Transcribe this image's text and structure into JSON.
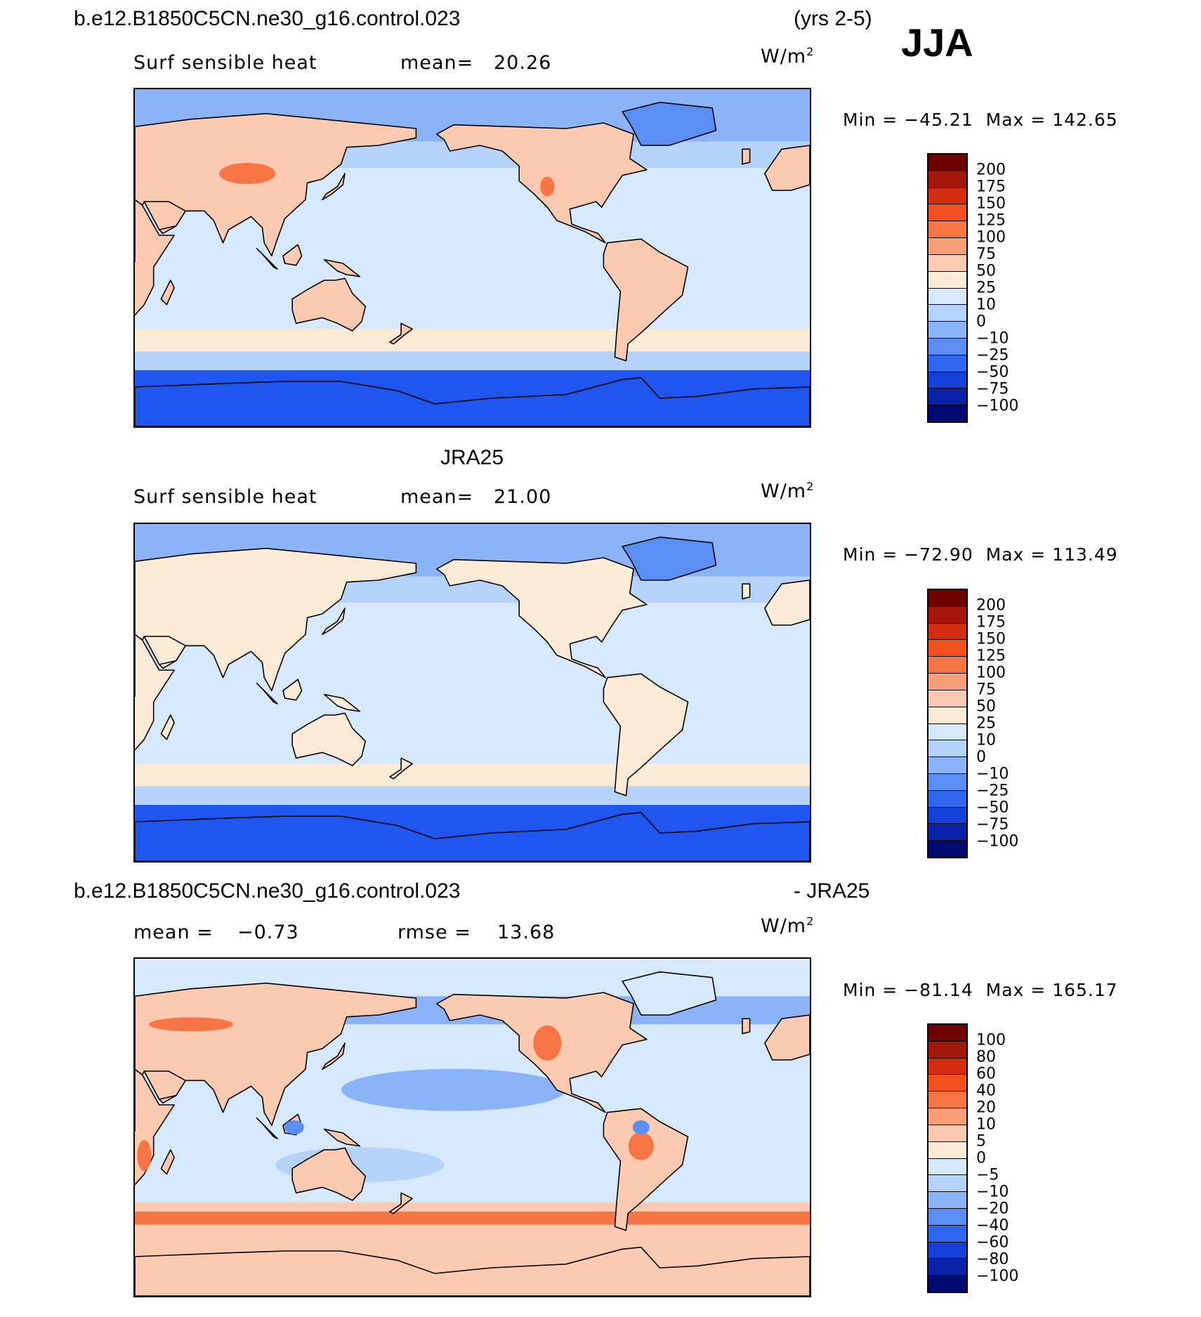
{
  "header": {
    "case_name": "b.e12.B1850C5CN.ne30_g16.control.023",
    "years": "(yrs 2-5)",
    "season": "JJA"
  },
  "panels": [
    {
      "id": "model",
      "field": "Surf  sensible  heat",
      "stat_label": "mean=",
      "stat_value": "20.26",
      "units_base": "W/m",
      "units_exp": "2",
      "min_label": "Min  =",
      "min_value": "−45.21",
      "max_label": "Max  =",
      "max_value": "142.65",
      "levels": [
        "200",
        "175",
        "150",
        "125",
        "100",
        "75",
        "50",
        "25",
        "10",
        "0",
        "−10",
        "−25",
        "−50",
        "−75",
        "−100"
      ]
    },
    {
      "id": "obs",
      "title": "JRA25",
      "field": "Surf  sensible  heat",
      "stat_label": "mean=",
      "stat_value": "21.00",
      "units_base": "W/m",
      "units_exp": "2",
      "min_label": "Min  =",
      "min_value": "−72.90",
      "max_label": "Max  =",
      "max_value": "113.49",
      "levels": [
        "200",
        "175",
        "150",
        "125",
        "100",
        "75",
        "50",
        "25",
        "10",
        "0",
        "−10",
        "−25",
        "−50",
        "−75",
        "−100"
      ]
    },
    {
      "id": "diff",
      "title_left": "b.e12.B1850C5CN.ne30_g16.control.023",
      "title_right": "- JRA25",
      "stat_label": "mean  =",
      "stat_value": "−0.73",
      "rmse_label": "rmse  =",
      "rmse_value": "13.68",
      "units_base": "W/m",
      "units_exp": "2",
      "min_label": "Min  =",
      "min_value": "−81.14",
      "max_label": "Max  =",
      "max_value": "165.17",
      "levels": [
        "100",
        "80",
        "60",
        "40",
        "20",
        "10",
        "5",
        "0",
        "−5",
        "−10",
        "−20",
        "−40",
        "−60",
        "−80",
        "−100"
      ]
    }
  ],
  "colorbar_colors": [
    "#6e0000",
    "#a3180a",
    "#d42c0f",
    "#f24e1e",
    "#f77545",
    "#fa9e78",
    "#fccab0",
    "#fdebd6",
    "#d6e8fb",
    "#b4d2fa",
    "#8bb4f8",
    "#5a8ef5",
    "#2f66ee",
    "#1440d8",
    "#0a22a8",
    "#000a70"
  ],
  "map_colors": {
    "ocean_light": "#d6e8fb",
    "ocean_mid": "#b4d2fa",
    "blue": "#8bb4f8",
    "blue_strong": "#5a8ef5",
    "antarctic": "#1f56f0",
    "land_warm": "#fccab0",
    "land_pale": "#fdebd6",
    "land_hot": "#f77545",
    "coast": "#000000"
  }
}
